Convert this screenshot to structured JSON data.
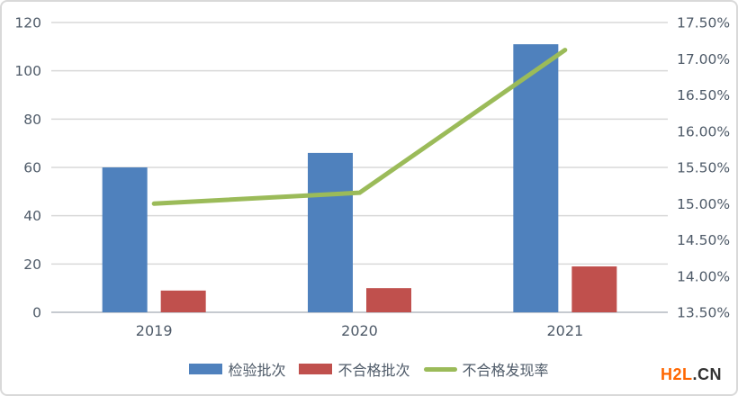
{
  "chart_data": {
    "type": "bar+line combo",
    "categories": [
      "2019",
      "2020",
      "2021"
    ],
    "series": [
      {
        "key": "inspected-batches",
        "name": "检验批次",
        "type": "bar",
        "axis": "left",
        "color": "#4F81BD",
        "values": [
          60,
          66,
          111
        ]
      },
      {
        "key": "failed-batches",
        "name": "不合格批次",
        "type": "bar",
        "axis": "left",
        "color": "#C0504D",
        "values": [
          9,
          10,
          19
        ]
      },
      {
        "key": "fail-discovery-rate",
        "name": "不合格发现率",
        "type": "line",
        "axis": "right",
        "color": "#9BBB59",
        "values": [
          15.0,
          15.15,
          17.12
        ]
      }
    ],
    "left_axis": {
      "min": 0,
      "max": 120,
      "step": 20,
      "ticks": [
        "120",
        "100",
        "80",
        "60",
        "40",
        "20",
        "0"
      ]
    },
    "right_axis": {
      "min": 13.5,
      "max": 17.5,
      "step": 0.5,
      "ticks": [
        "17.50%",
        "17.00%",
        "16.50%",
        "16.00%",
        "15.50%",
        "15.00%",
        "14.50%",
        "14.00%",
        "13.50%"
      ]
    },
    "title": "",
    "xlabel": "",
    "ylabel": "",
    "grid": true,
    "legend_position": "bottom",
    "colors": {
      "gridline": "#D9D9D9",
      "axis_line": "#C6CAD0",
      "label_text": "#4E5A68"
    }
  },
  "watermark": {
    "primary": "H2L",
    "secondary": ".CN",
    "primary_color": "#FF6600",
    "secondary_color": "#333333"
  }
}
